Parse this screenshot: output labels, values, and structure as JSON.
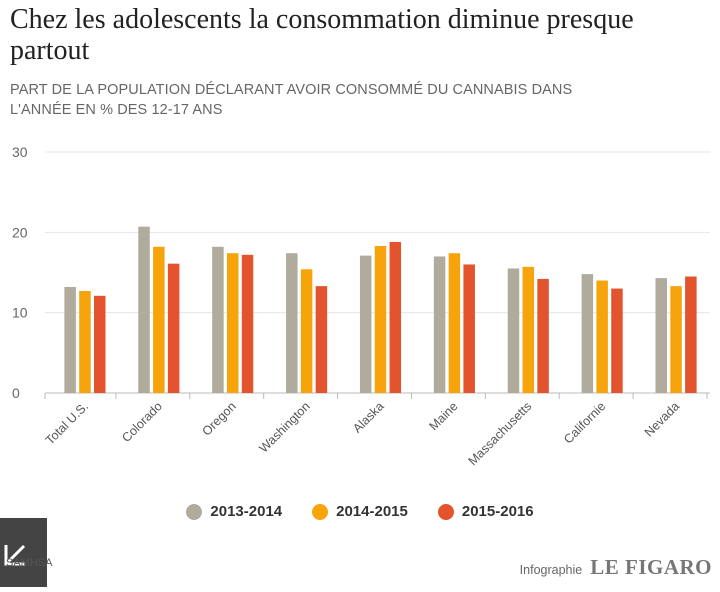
{
  "title": "Chez les adolescents la consommation diminue presque partout",
  "subtitle": "PART DE LA POPULATION DÉCLARANT AVOIR CONSOMMÉ DU CANNABIS DANS L'ANNÉE EN % DES 12-17 ANS",
  "chart_data": {
    "type": "bar",
    "title": "Chez les adolescents la consommation diminue presque partout",
    "subtitle": "PART DE LA POPULATION DÉCLARANT AVOIR CONSOMMÉ DU CANNABIS DANS L'ANNÉE EN % DES 12-17 ANS",
    "categories": [
      "Total U.S.",
      "Colorado",
      "Oregon",
      "Washington",
      "Alaska",
      "Maine",
      "Massachusetts",
      "Californie",
      "Nevada"
    ],
    "series": [
      {
        "name": "2013-2014",
        "color": "#b0ab9c",
        "values": [
          13.2,
          20.7,
          18.2,
          17.4,
          17.1,
          17.0,
          15.5,
          14.8,
          14.3
        ]
      },
      {
        "name": "2014-2015",
        "color": "#f7a30c",
        "values": [
          12.7,
          18.2,
          17.4,
          15.4,
          18.3,
          17.4,
          15.7,
          14.0,
          13.3
        ]
      },
      {
        "name": "2015-2016",
        "color": "#e2532e",
        "values": [
          12.1,
          16.1,
          17.2,
          13.3,
          18.8,
          16.0,
          14.2,
          13.0,
          14.5
        ]
      }
    ],
    "ylim": [
      0,
      30
    ],
    "yticks": [
      0,
      10,
      20,
      30
    ],
    "grid": true,
    "legend": "bottom-center",
    "xlabel": "",
    "ylabel": ""
  },
  "legend": {
    "items": [
      {
        "label": "2013-2014",
        "color": "#b0ab9c"
      },
      {
        "label": "2014-2015",
        "color": "#f7a30c"
      },
      {
        "label": "2015-2016",
        "color": "#e2532e"
      }
    ]
  },
  "footer": {
    "source": "SAMHSA",
    "credit_label": "Infographie",
    "credit_brand": "LE FIGARO",
    "expand_icon": "expand-arrow-icon"
  }
}
